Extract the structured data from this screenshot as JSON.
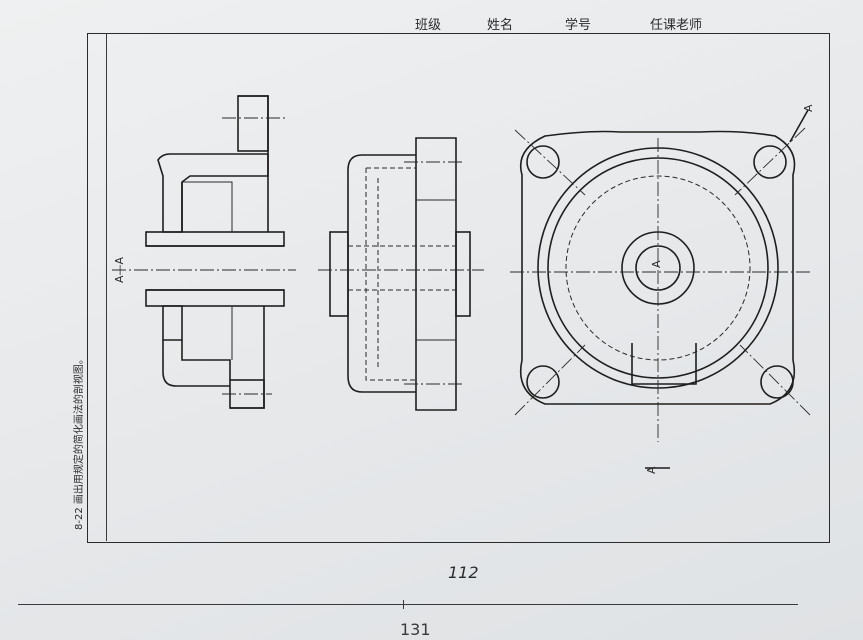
{
  "header": {
    "class_label": "班级",
    "name_label": "姓名",
    "student_id_label": "学号",
    "teacher_label": "任课老师"
  },
  "exercise_text": "8-22 画出用规定的简化画法的剖视图。",
  "section_labels": {
    "left_view": "A—A",
    "cut_top": "A",
    "cut_bottom": "A",
    "center_mark": "A"
  },
  "page_number": "112",
  "bottom_measure": "131",
  "colors": {
    "paper": "#e9ebec",
    "ink": "#1f1f1f"
  }
}
